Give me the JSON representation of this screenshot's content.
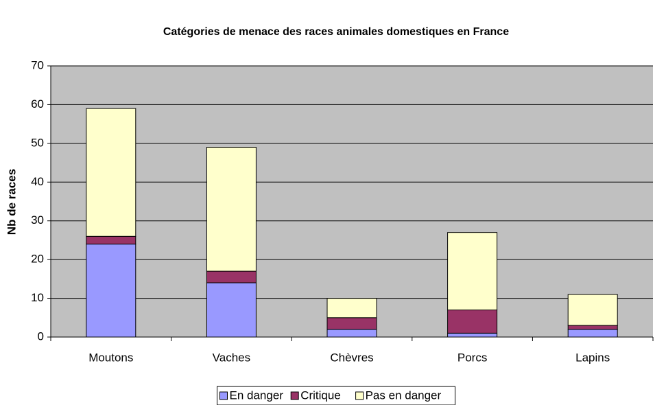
{
  "chart_data": {
    "type": "stacked_bar",
    "title": "Catégories de menace des races animales domestiques en France",
    "y_label": "Nb de races",
    "categories": [
      "Moutons",
      "Vaches",
      "Chèvres",
      "Porcs",
      "Lapins"
    ],
    "series": [
      {
        "name": "En danger",
        "color": "#9999ff",
        "values": [
          24,
          14,
          2,
          1,
          2
        ]
      },
      {
        "name": "Critique",
        "color": "#993366",
        "values": [
          2,
          3,
          3,
          6,
          1
        ]
      },
      {
        "name": "Pas en danger",
        "color": "#ffffcc",
        "values": [
          33,
          32,
          5,
          20,
          8
        ]
      }
    ],
    "ylim": [
      0,
      70
    ],
    "yticks": [
      0,
      10,
      20,
      30,
      40,
      50,
      60,
      70
    ],
    "grid": true,
    "legend": "bottom"
  }
}
